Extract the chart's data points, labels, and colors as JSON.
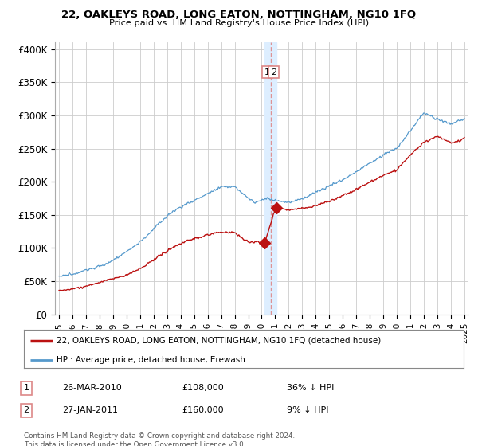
{
  "title": "22, OAKLEYS ROAD, LONG EATON, NOTTINGHAM, NG10 1FQ",
  "subtitle": "Price paid vs. HM Land Registry's House Price Index (HPI)",
  "legend_label_red": "22, OAKLEYS ROAD, LONG EATON, NOTTINGHAM, NG10 1FQ (detached house)",
  "legend_label_blue": "HPI: Average price, detached house, Erewash",
  "transaction1_date": "26-MAR-2010",
  "transaction1_price": "£108,000",
  "transaction1_hpi": "36% ↓ HPI",
  "transaction2_date": "27-JAN-2011",
  "transaction2_price": "£160,000",
  "transaction2_hpi": "9% ↓ HPI",
  "footer": "Contains HM Land Registry data © Crown copyright and database right 2024.\nThis data is licensed under the Open Government Licence v3.0.",
  "red_color": "#bb1111",
  "blue_color": "#5599cc",
  "dashed_line_color": "#dd8888",
  "band_color": "#ddeeff",
  "background_color": "#ffffff",
  "grid_color": "#cccccc",
  "ylim": [
    0,
    410000
  ],
  "yticks": [
    0,
    50000,
    100000,
    150000,
    200000,
    250000,
    300000,
    350000,
    400000
  ],
  "ytick_labels": [
    "£0",
    "£50K",
    "£100K",
    "£150K",
    "£200K",
    "£250K",
    "£300K",
    "£350K",
    "£400K"
  ],
  "xlim_start": 1994.7,
  "xlim_end": 2025.3,
  "transaction1_x": 2010.23,
  "transaction2_x": 2011.07,
  "vline_x": 2010.65
}
